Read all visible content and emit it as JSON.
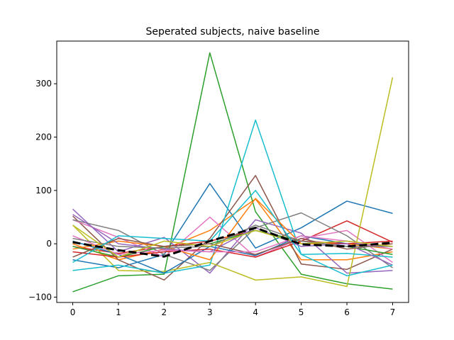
{
  "chart_data": {
    "type": "line",
    "title": "Seperated subjects, naive baseline",
    "xlabel": "",
    "ylabel": "",
    "xlim": [
      -0.35,
      7.35
    ],
    "ylim": [
      -110,
      380
    ],
    "xticks": [
      0,
      1,
      2,
      3,
      4,
      5,
      6,
      7
    ],
    "yticks": [
      -100,
      0,
      100,
      200,
      300
    ],
    "grid": false,
    "legend": "none",
    "x": [
      0,
      1,
      2,
      3,
      4,
      5,
      6,
      7
    ],
    "series": [
      {
        "color": "#1f77b4",
        "values": [
          -30,
          -45,
          -20,
          113,
          -8,
          30,
          80,
          57
        ]
      },
      {
        "color": "#ff7f0e",
        "values": [
          0,
          -30,
          -10,
          25,
          84,
          -30,
          -30,
          -15
        ]
      },
      {
        "color": "#2ca02c",
        "values": [
          -90,
          -60,
          -57,
          358,
          60,
          -57,
          -75,
          -85
        ]
      },
      {
        "color": "#d62728",
        "values": [
          -5,
          -18,
          -5,
          5,
          25,
          5,
          43,
          3
        ]
      },
      {
        "color": "#9467bd",
        "values": [
          65,
          -15,
          12,
          -55,
          45,
          20,
          -55,
          -50
        ]
      },
      {
        "color": "#8c564b",
        "values": [
          52,
          -30,
          -68,
          10,
          128,
          -38,
          -48,
          -10
        ]
      },
      {
        "color": "#e377c2",
        "values": [
          45,
          12,
          -25,
          50,
          -25,
          10,
          25,
          -35
        ]
      },
      {
        "color": "#7f7f7f",
        "values": [
          45,
          25,
          -20,
          -50,
          30,
          58,
          15,
          -45
        ]
      },
      {
        "color": "#bcbd22",
        "values": [
          35,
          -50,
          -52,
          -35,
          -68,
          -62,
          -80,
          312
        ]
      },
      {
        "color": "#17becf",
        "values": [
          -50,
          -40,
          -55,
          -40,
          232,
          -20,
          -18,
          -25
        ]
      },
      {
        "color": "#1f77b4",
        "values": [
          5,
          -20,
          -55,
          -5,
          -22,
          15,
          0,
          -5
        ]
      },
      {
        "color": "#ff7f0e",
        "values": [
          -10,
          5,
          -5,
          -30,
          85,
          0,
          0,
          -10
        ]
      },
      {
        "color": "#2ca02c",
        "values": [
          -5,
          -25,
          -5,
          0,
          25,
          5,
          -5,
          -20
        ]
      },
      {
        "color": "#d62728",
        "values": [
          -15,
          -25,
          -15,
          -10,
          -25,
          5,
          0,
          5
        ]
      },
      {
        "color": "#9467bd",
        "values": [
          55,
          0,
          -10,
          -15,
          30,
          -5,
          0,
          -40
        ]
      },
      {
        "color": "#8c564b",
        "values": [
          -25,
          10,
          -5,
          0,
          -20,
          10,
          -10,
          0
        ]
      },
      {
        "color": "#e377c2",
        "values": [
          15,
          -20,
          -12,
          -15,
          -15,
          15,
          5,
          -10
        ]
      },
      {
        "color": "#7f7f7f",
        "values": [
          10,
          -5,
          -8,
          -5,
          35,
          5,
          -5,
          -5
        ]
      },
      {
        "color": "#bcbd22",
        "values": [
          35,
          -25,
          5,
          -5,
          25,
          0,
          5,
          -5
        ]
      },
      {
        "color": "#17becf",
        "values": [
          -35,
          15,
          10,
          5,
          100,
          -20,
          -60,
          -40
        ]
      },
      {
        "color": "#000000",
        "style": "dashed",
        "width": 3,
        "values": [
          3,
          -12,
          -24,
          5,
          30,
          -1,
          -5,
          2
        ]
      }
    ]
  }
}
